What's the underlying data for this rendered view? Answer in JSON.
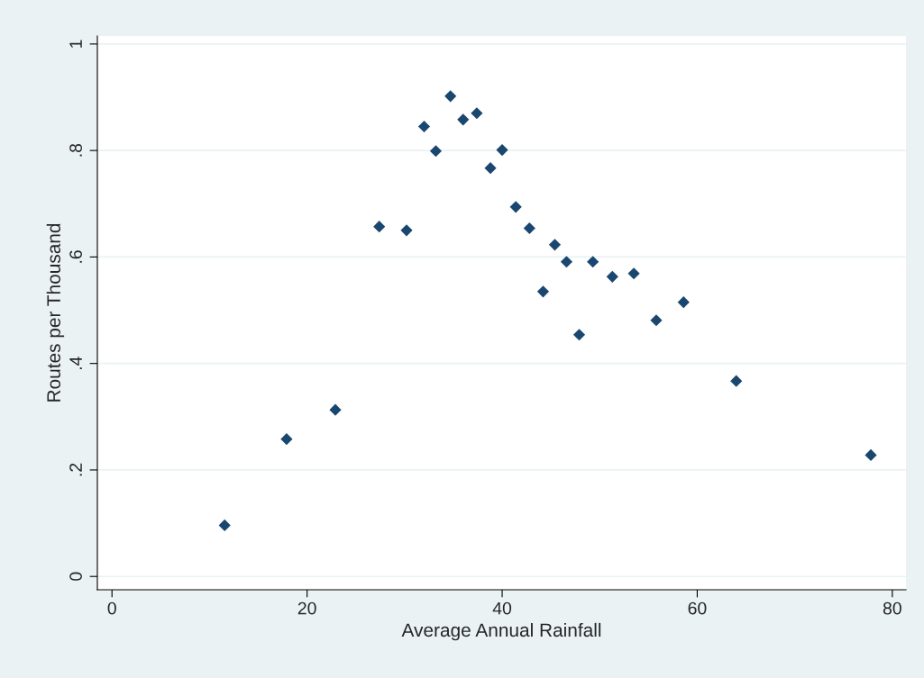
{
  "chart_data": {
    "type": "scatter",
    "xlabel": "Average Annual Rainfall",
    "ylabel": "Routes per Thousand",
    "x": [
      11.55,
      17.9,
      22.9,
      27.4,
      30.2,
      32.0,
      33.2,
      34.7,
      36.0,
      37.4,
      38.8,
      40.0,
      41.4,
      42.8,
      44.2,
      45.4,
      46.6,
      47.9,
      49.3,
      51.3,
      53.5,
      55.8,
      58.6,
      64.0,
      77.8
    ],
    "series": [
      {
        "color": "#1a476f",
        "values": [
          0.096,
          0.258,
          0.313,
          0.657,
          0.65,
          0.845,
          0.799,
          0.902,
          0.858,
          0.87,
          0.767,
          0.801,
          0.694,
          0.654,
          0.535,
          0.623,
          0.591,
          0.454,
          0.591,
          0.563,
          0.569,
          0.481,
          0.515,
          0.367,
          0.228
        ]
      }
    ],
    "xlim": [
      -1.5,
      81.4
    ],
    "xticks": [
      0,
      20,
      40,
      60,
      80
    ],
    "ylim": [
      -0.025,
      1.015
    ],
    "yticks": [
      0,
      {
        "value": 0.2,
        "label": ".2"
      },
      {
        "value": 0.4,
        "label": ".4"
      },
      {
        "value": 0.6,
        "label": ".6"
      },
      {
        "value": 0.8,
        "label": ".8"
      },
      1
    ],
    "grid": "y",
    "marker": "diamond"
  }
}
